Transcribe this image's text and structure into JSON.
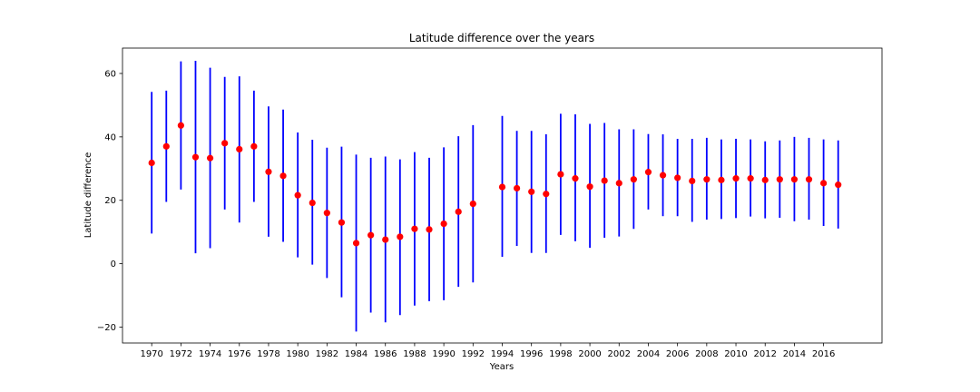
{
  "chart_data": {
    "type": "scatter",
    "title": "Latitude difference over the years",
    "xlabel": "Years",
    "ylabel": "Latitude difference",
    "xlim": [
      1968,
      2020
    ],
    "ylim": [
      -25,
      68
    ],
    "xticks": [
      1970,
      1972,
      1974,
      1976,
      1978,
      1980,
      1982,
      1984,
      1986,
      1988,
      1990,
      1992,
      1994,
      1996,
      1998,
      2000,
      2002,
      2004,
      2006,
      2008,
      2010,
      2012,
      2014,
      2016
    ],
    "yticks": [
      -20,
      0,
      20,
      40,
      60
    ],
    "grid": false,
    "colors": {
      "errorbar": "#0000ff",
      "marker": "#ff0000"
    },
    "points": [
      {
        "x": 1970,
        "y": 31.8,
        "low": 9.5,
        "high": 54.2
      },
      {
        "x": 1971,
        "y": 37.0,
        "low": 19.5,
        "high": 54.6
      },
      {
        "x": 1972,
        "y": 43.6,
        "low": 23.4,
        "high": 63.8
      },
      {
        "x": 1973,
        "y": 33.6,
        "low": 3.3,
        "high": 64.0
      },
      {
        "x": 1974,
        "y": 33.3,
        "low": 4.9,
        "high": 61.8
      },
      {
        "x": 1975,
        "y": 38.0,
        "low": 17.1,
        "high": 58.9
      },
      {
        "x": 1976,
        "y": 36.1,
        "low": 13.0,
        "high": 59.1
      },
      {
        "x": 1977,
        "y": 37.0,
        "low": 19.5,
        "high": 54.6
      },
      {
        "x": 1978,
        "y": 29.0,
        "low": 8.5,
        "high": 49.6
      },
      {
        "x": 1979,
        "y": 27.7,
        "low": 6.9,
        "high": 48.6
      },
      {
        "x": 1980,
        "y": 21.6,
        "low": 2.0,
        "high": 41.4
      },
      {
        "x": 1981,
        "y": 19.2,
        "low": -0.3,
        "high": 39.1
      },
      {
        "x": 1982,
        "y": 16.0,
        "low": -4.5,
        "high": 36.6
      },
      {
        "x": 1983,
        "y": 13.0,
        "low": -10.6,
        "high": 36.9
      },
      {
        "x": 1984,
        "y": 6.5,
        "low": -21.4,
        "high": 34.4
      },
      {
        "x": 1985,
        "y": 9.0,
        "low": -15.4,
        "high": 33.4
      },
      {
        "x": 1986,
        "y": 7.6,
        "low": -18.5,
        "high": 33.8
      },
      {
        "x": 1987,
        "y": 8.5,
        "low": -16.2,
        "high": 32.9
      },
      {
        "x": 1988,
        "y": 11.0,
        "low": -13.2,
        "high": 35.2
      },
      {
        "x": 1989,
        "y": 10.8,
        "low": -11.8,
        "high": 33.4
      },
      {
        "x": 1990,
        "y": 12.6,
        "low": -11.5,
        "high": 36.7
      },
      {
        "x": 1991,
        "y": 16.4,
        "low": -7.3,
        "high": 40.2
      },
      {
        "x": 1992,
        "y": 18.9,
        "low": -5.9,
        "high": 43.7
      },
      {
        "x": 1994,
        "y": 24.2,
        "low": 2.2,
        "high": 46.6
      },
      {
        "x": 1995,
        "y": 23.8,
        "low": 5.6,
        "high": 41.9
      },
      {
        "x": 1996,
        "y": 22.7,
        "low": 3.4,
        "high": 41.9
      },
      {
        "x": 1997,
        "y": 22.0,
        "low": 3.4,
        "high": 40.8
      },
      {
        "x": 1998,
        "y": 28.2,
        "low": 9.1,
        "high": 47.3
      },
      {
        "x": 1999,
        "y": 26.9,
        "low": 7.1,
        "high": 47.1
      },
      {
        "x": 2000,
        "y": 24.3,
        "low": 5.0,
        "high": 44.1
      },
      {
        "x": 2001,
        "y": 26.2,
        "low": 8.2,
        "high": 44.4
      },
      {
        "x": 2002,
        "y": 25.4,
        "low": 8.6,
        "high": 42.4
      },
      {
        "x": 2003,
        "y": 26.6,
        "low": 11.0,
        "high": 42.4
      },
      {
        "x": 2004,
        "y": 28.9,
        "low": 17.1,
        "high": 40.9
      },
      {
        "x": 2005,
        "y": 27.9,
        "low": 15.0,
        "high": 40.8
      },
      {
        "x": 2006,
        "y": 27.1,
        "low": 15.0,
        "high": 39.4
      },
      {
        "x": 2007,
        "y": 26.1,
        "low": 13.2,
        "high": 39.4
      },
      {
        "x": 2008,
        "y": 26.6,
        "low": 13.9,
        "high": 39.7
      },
      {
        "x": 2009,
        "y": 26.4,
        "low": 14.1,
        "high": 39.2
      },
      {
        "x": 2010,
        "y": 26.9,
        "low": 14.4,
        "high": 39.4
      },
      {
        "x": 2011,
        "y": 26.9,
        "low": 14.9,
        "high": 39.2
      },
      {
        "x": 2012,
        "y": 26.4,
        "low": 14.3,
        "high": 38.6
      },
      {
        "x": 2013,
        "y": 26.6,
        "low": 14.5,
        "high": 38.9
      },
      {
        "x": 2014,
        "y": 26.6,
        "low": 13.4,
        "high": 40.0
      },
      {
        "x": 2015,
        "y": 26.6,
        "low": 13.9,
        "high": 39.7
      },
      {
        "x": 2016,
        "y": 25.4,
        "low": 11.9,
        "high": 39.2
      },
      {
        "x": 2017,
        "y": 24.9,
        "low": 11.1,
        "high": 38.9
      }
    ]
  }
}
